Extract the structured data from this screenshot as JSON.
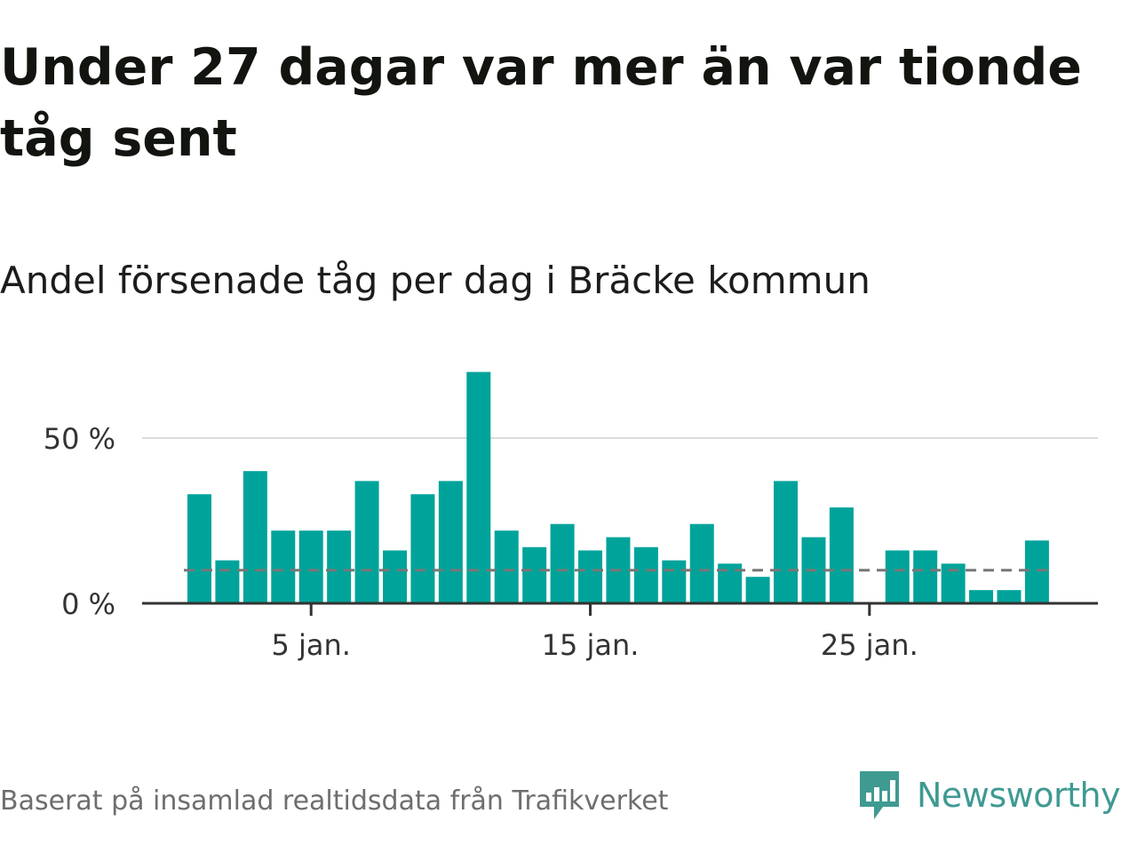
{
  "title": "Under 27 dagar var mer än var tionde tåg sent",
  "subtitle": "Andel försenade tåg per dag i Bräcke kommun",
  "source": "Baserat på insamlad realtidsdata från Trafikverket",
  "brand": {
    "name": "Newsworthy",
    "icon": "newsworthy-logo-icon",
    "color": "#3f9a92"
  },
  "colors": {
    "bar": "#00a39a",
    "baseline": "#333333",
    "gridline": "#dddddd",
    "reference_line": "#777777",
    "tick_label": "#333333"
  },
  "chart_data": {
    "type": "bar",
    "x": [
      "1 jan.",
      "2 jan.",
      "3 jan.",
      "4 jan.",
      "5 jan.",
      "6 jan.",
      "7 jan.",
      "8 jan.",
      "9 jan.",
      "10 jan.",
      "11 jan.",
      "12 jan.",
      "13 jan.",
      "14 jan.",
      "15 jan.",
      "16 jan.",
      "17 jan.",
      "18 jan.",
      "19 jan.",
      "20 jan.",
      "21 jan.",
      "22 jan.",
      "23 jan.",
      "24 jan.",
      "25 jan.",
      "26 jan.",
      "27 jan.",
      "28 jan.",
      "29 jan.",
      "30 jan.",
      "31 jan."
    ],
    "values": [
      33,
      13,
      40,
      22,
      22,
      22,
      37,
      16,
      33,
      37,
      70,
      22,
      17,
      24,
      16,
      20,
      17,
      13,
      24,
      12,
      8,
      37,
      20,
      29,
      0,
      16,
      16,
      12,
      4,
      4,
      19
    ],
    "reference_value": 10,
    "reference_style": "dashed",
    "xticks": [
      "5 jan.",
      "15 jan.",
      "25 jan."
    ],
    "ytick_values": [
      0,
      50
    ],
    "yticks": [
      "0 %",
      "50 %"
    ],
    "ylim": [
      0,
      75
    ],
    "xlabel": "",
    "ylabel": "",
    "grid": "horizontal",
    "legend": "none"
  }
}
